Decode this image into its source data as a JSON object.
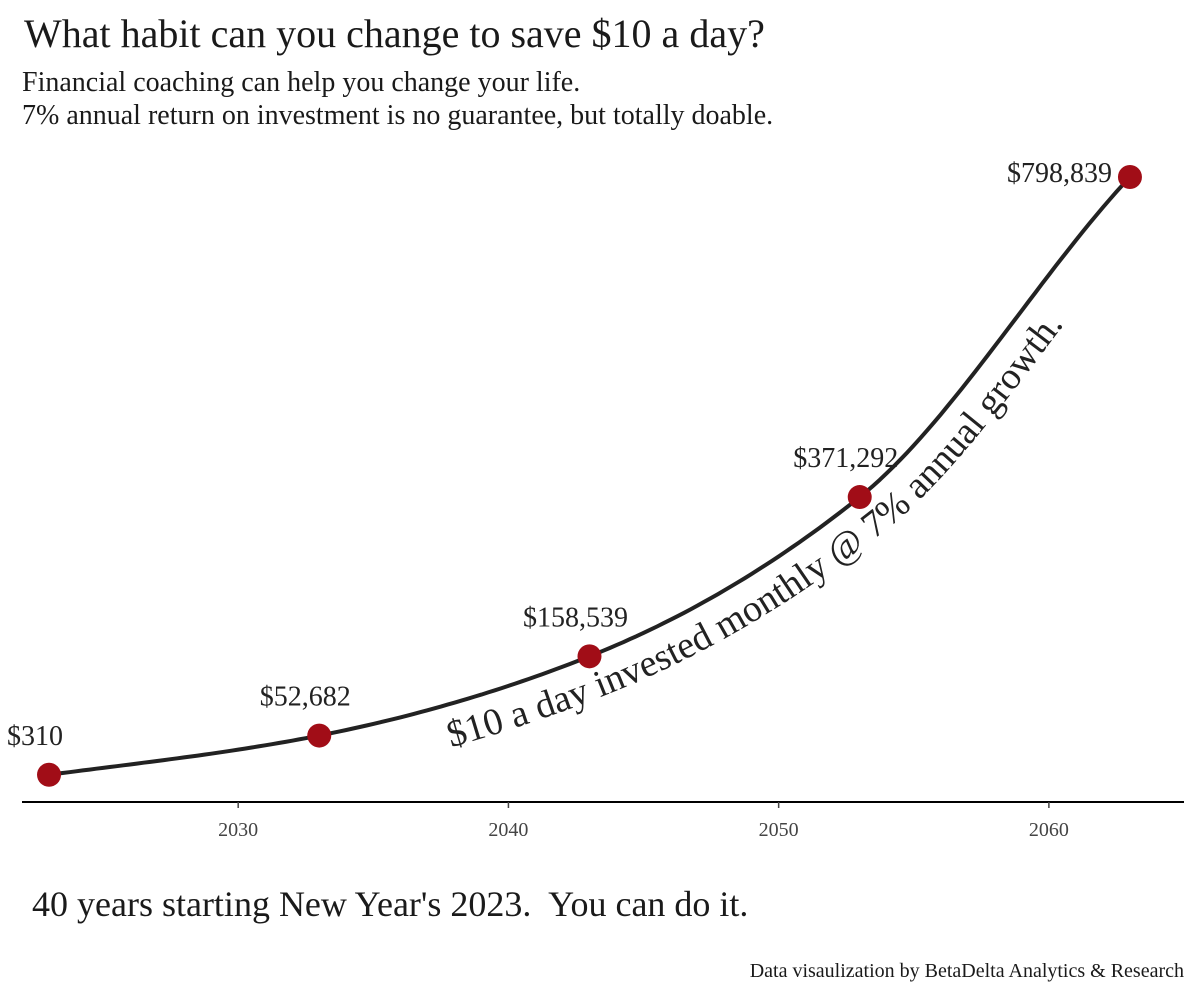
{
  "title": "What habit can you change to save $10 a day?",
  "subtitle": [
    "Financial coaching can help you change your life.",
    "7% annual return on investment is no guarantee, but totally doable."
  ],
  "chart_data": {
    "type": "line",
    "xlim": [
      2022,
      2065
    ],
    "ylim": [
      -30000,
      800000
    ],
    "x_ticks": [
      2030,
      2040,
      2050,
      2060
    ],
    "x_tick_labels": [
      "2030",
      "2040",
      "2050",
      "2060"
    ],
    "xlabel": "",
    "ylabel": "",
    "grid": false,
    "series": [
      {
        "x": [
          2023,
          2033,
          2043,
          2053,
          2063
        ],
        "values": [
          310,
          52682,
          158539,
          371292,
          798839
        ],
        "labels": [
          "$310",
          "$52,682",
          "$158,539",
          "$371,292",
          "$798,839"
        ],
        "line_color": "#222222",
        "point_color": "#a10d17"
      }
    ],
    "annotation": "$10  a day invested monthly @ 7% annual growth."
  },
  "caption": "40 years starting New Year's 2023.  You can do it.",
  "credit": "Data visaulization by BetaDelta Analytics & Research"
}
